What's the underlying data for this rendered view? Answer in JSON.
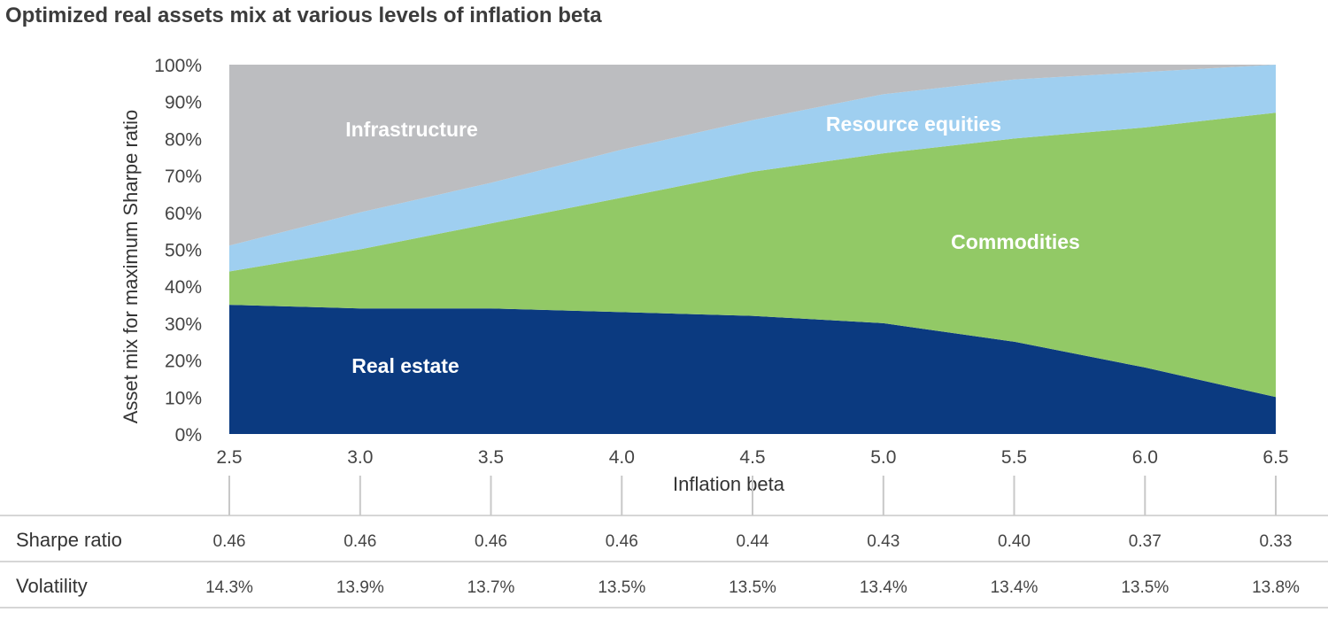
{
  "title": "Optimized real assets mix at various levels of inflation beta",
  "chart_data": {
    "type": "area",
    "stacked": true,
    "title": "Optimized real assets mix at various levels of inflation beta",
    "xlabel": "Inflation beta",
    "ylabel": "Asset mix for maximum Sharpe ratio",
    "x": [
      2.5,
      3.0,
      3.5,
      4.0,
      4.5,
      5.0,
      5.5,
      6.0,
      6.5
    ],
    "x_tick_labels": [
      "2.5",
      "3.0",
      "3.5",
      "4.0",
      "4.5",
      "5.0",
      "5.5",
      "6.0",
      "6.5"
    ],
    "ylim": [
      0,
      100
    ],
    "y_tick_labels": [
      "0%",
      "10%",
      "20%",
      "30%",
      "40%",
      "50%",
      "60%",
      "70%",
      "80%",
      "90%",
      "100%"
    ],
    "series": [
      {
        "name": "Real estate",
        "color": "#0b3a80",
        "values": [
          35,
          34,
          34,
          33,
          32,
          30,
          25,
          18,
          10
        ]
      },
      {
        "name": "Commodities",
        "color": "#92c966",
        "values": [
          9,
          16,
          23,
          31,
          39,
          46,
          55,
          65,
          77
        ]
      },
      {
        "name": "Resource equities",
        "color": "#9fcff0",
        "values": [
          7,
          10,
          11,
          13,
          14,
          16,
          16,
          15,
          13
        ]
      },
      {
        "name": "Infrastructure",
        "color": "#bcbdc0",
        "values": [
          49,
          40,
          32,
          23,
          15,
          8,
          4,
          2,
          0
        ]
      }
    ],
    "grid": false,
    "legend": "none"
  },
  "table": {
    "rows": [
      {
        "label": "Sharpe ratio",
        "values": [
          "0.46",
          "0.46",
          "0.46",
          "0.46",
          "0.44",
          "0.43",
          "0.40",
          "0.37",
          "0.33"
        ]
      },
      {
        "label": "Volatility",
        "values": [
          "14.3%",
          "13.9%",
          "13.7%",
          "13.5%",
          "13.5%",
          "13.4%",
          "13.4%",
          "13.5%",
          "13.8%"
        ]
      }
    ]
  }
}
